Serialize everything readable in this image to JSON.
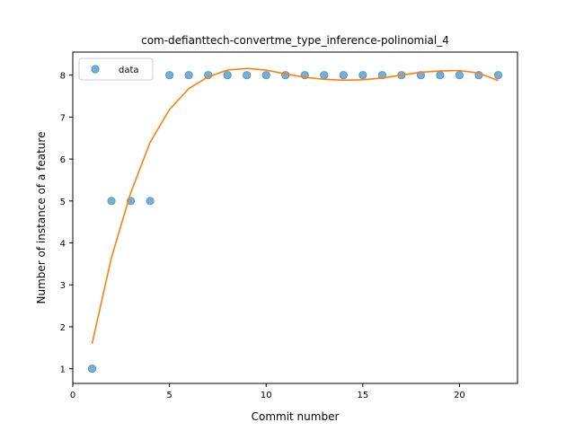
{
  "chart_data": {
    "type": "scatter",
    "title": "com-defianttech-convertme_type_inference-polinomial_4",
    "xlabel": "Commit number",
    "ylabel": "Number of instance of a feature",
    "xlim": [
      0,
      23
    ],
    "ylim": [
      0.65,
      8.55
    ],
    "xticks": [
      0,
      5,
      10,
      15,
      20
    ],
    "yticks": [
      1,
      2,
      3,
      4,
      5,
      6,
      7,
      8
    ],
    "grid": false,
    "legend": {
      "position": "upper-left",
      "entries": [
        "data"
      ]
    },
    "series": [
      {
        "name": "data",
        "kind": "scatter",
        "color": "#1f77b4",
        "x": [
          1,
          2,
          3,
          4,
          5,
          6,
          7,
          8,
          9,
          10,
          11,
          12,
          13,
          14,
          15,
          16,
          17,
          18,
          19,
          20,
          21,
          22
        ],
        "y": [
          1,
          5,
          5,
          5,
          8,
          8,
          8,
          8,
          8,
          8,
          8,
          8,
          8,
          8,
          8,
          8,
          8,
          8,
          8,
          8,
          8,
          8
        ]
      },
      {
        "kind": "line",
        "color": "#ff7f0e",
        "x": [
          1,
          2,
          3,
          4,
          5,
          6,
          7,
          8,
          9,
          10,
          11,
          12,
          13,
          14,
          15,
          16,
          17,
          18,
          19,
          20,
          21,
          22
        ],
        "y": [
          1.6,
          3.65,
          5.2,
          6.4,
          7.18,
          7.68,
          7.96,
          8.12,
          8.16,
          8.12,
          8.03,
          7.95,
          7.9,
          7.88,
          7.89,
          7.93,
          8.0,
          8.07,
          8.1,
          8.11,
          8.05,
          7.87
        ]
      }
    ]
  }
}
